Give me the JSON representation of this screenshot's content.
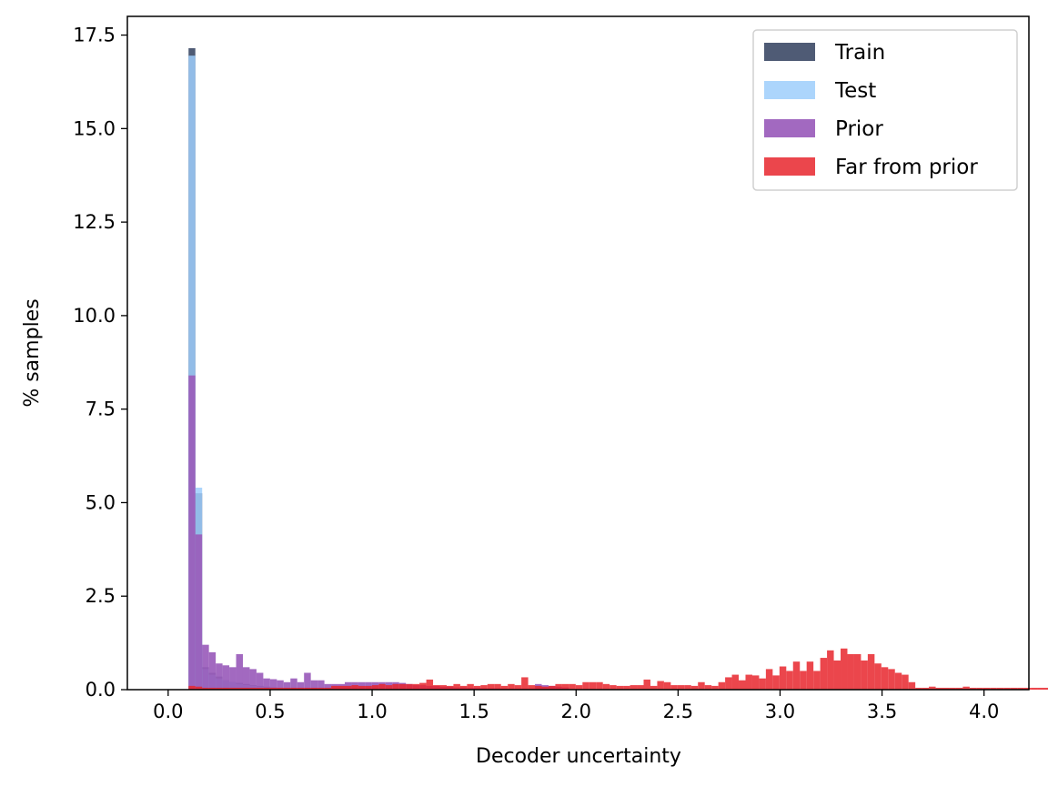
{
  "chart_data": {
    "type": "histogram",
    "xlabel": "Decoder uncertainty",
    "ylabel": "% samples",
    "xlim": [
      -0.2,
      4.22
    ],
    "ylim": [
      0,
      18
    ],
    "xticks": [
      "0.0",
      "0.5",
      "1.0",
      "1.5",
      "2.0",
      "2.5",
      "3.0",
      "3.5",
      "4.0"
    ],
    "yticks": [
      "0.0",
      "2.5",
      "5.0",
      "7.5",
      "10.0",
      "12.5",
      "15.0",
      "17.5"
    ],
    "legend_position": "top-right",
    "bin_start": 0.0,
    "bin_width": 0.0333,
    "series": [
      {
        "name": "Train",
        "color": "#4f5b75",
        "alpha": 1.0,
        "bins_start": 0.1,
        "values": [
          17.15,
          5.25,
          0.6,
          0.45,
          0.35,
          0.25,
          0.2,
          0.18,
          0.15,
          0.12,
          0.1,
          0.08,
          0.06,
          0.05,
          0.04,
          0.03,
          0.02
        ]
      },
      {
        "name": "Test",
        "color": "#9dcefb",
        "alpha": 0.85,
        "bins_start": 0.1,
        "values": [
          16.95,
          5.4,
          0.55,
          0.4,
          0.3,
          0.25,
          0.2,
          0.15,
          0.12,
          0.1,
          0.08,
          0.06,
          0.05,
          0.04,
          0.03,
          0.02
        ]
      },
      {
        "name": "Prior",
        "color": "#9a5cbb",
        "alpha": 0.92,
        "bins_start": 0.1,
        "values": [
          8.4,
          4.15,
          1.2,
          1.0,
          0.7,
          0.65,
          0.6,
          0.95,
          0.6,
          0.55,
          0.45,
          0.3,
          0.28,
          0.25,
          0.2,
          0.3,
          0.2,
          0.45,
          0.25,
          0.25,
          0.15,
          0.15,
          0.15,
          0.2,
          0.2,
          0.2,
          0.2,
          0.2,
          0.2,
          0.2,
          0.2,
          0.18,
          0.15,
          0.12,
          0.12,
          0.1,
          0.1,
          0.08,
          0.08,
          0.06,
          0.06,
          0.05,
          0.05,
          0.04,
          0.04,
          0.04,
          0.03,
          0.03,
          0.03,
          0.03,
          0.03,
          0.15,
          0.12,
          0.1,
          0.08,
          0.06
        ]
      },
      {
        "name": "Far from prior",
        "color": "#e8262d",
        "alpha": 0.85,
        "bins_start": 0.1,
        "values": [
          0.1,
          0.08,
          0.05,
          0.05,
          0.05,
          0.05,
          0.05,
          0.05,
          0.05,
          0.05,
          0.05,
          0.05,
          0.05,
          0.05,
          0.05,
          0.05,
          0.05,
          0.05,
          0.05,
          0.05,
          0.05,
          0.1,
          0.1,
          0.1,
          0.12,
          0.1,
          0.1,
          0.12,
          0.15,
          0.12,
          0.15,
          0.15,
          0.15,
          0.15,
          0.18,
          0.27,
          0.12,
          0.12,
          0.1,
          0.15,
          0.1,
          0.15,
          0.1,
          0.12,
          0.15,
          0.15,
          0.1,
          0.15,
          0.12,
          0.33,
          0.12,
          0.1,
          0.08,
          0.1,
          0.15,
          0.15,
          0.15,
          0.12,
          0.2,
          0.2,
          0.2,
          0.15,
          0.12,
          0.1,
          0.1,
          0.12,
          0.12,
          0.27,
          0.1,
          0.23,
          0.2,
          0.12,
          0.12,
          0.12,
          0.1,
          0.2,
          0.12,
          0.1,
          0.2,
          0.33,
          0.4,
          0.25,
          0.4,
          0.38,
          0.3,
          0.55,
          0.38,
          0.62,
          0.5,
          0.75,
          0.5,
          0.75,
          0.5,
          0.85,
          1.05,
          0.78,
          1.1,
          0.95,
          0.95,
          0.78,
          0.95,
          0.7,
          0.6,
          0.55,
          0.45,
          0.4,
          0.2,
          0.05,
          0.05,
          0.08,
          0.05,
          0.05,
          0.05,
          0.05,
          0.08,
          0.05,
          0.05,
          0.05,
          0.05,
          0.05,
          0.05,
          0.05,
          0.05,
          0.05,
          0.05,
          0.05,
          0.05,
          0.05,
          0.05,
          0.05,
          0.05,
          0.05,
          0.05,
          0.05,
          0.05,
          0.05,
          0.05,
          0.05,
          0.05,
          0.05,
          0.05,
          0.05
        ]
      }
    ]
  }
}
